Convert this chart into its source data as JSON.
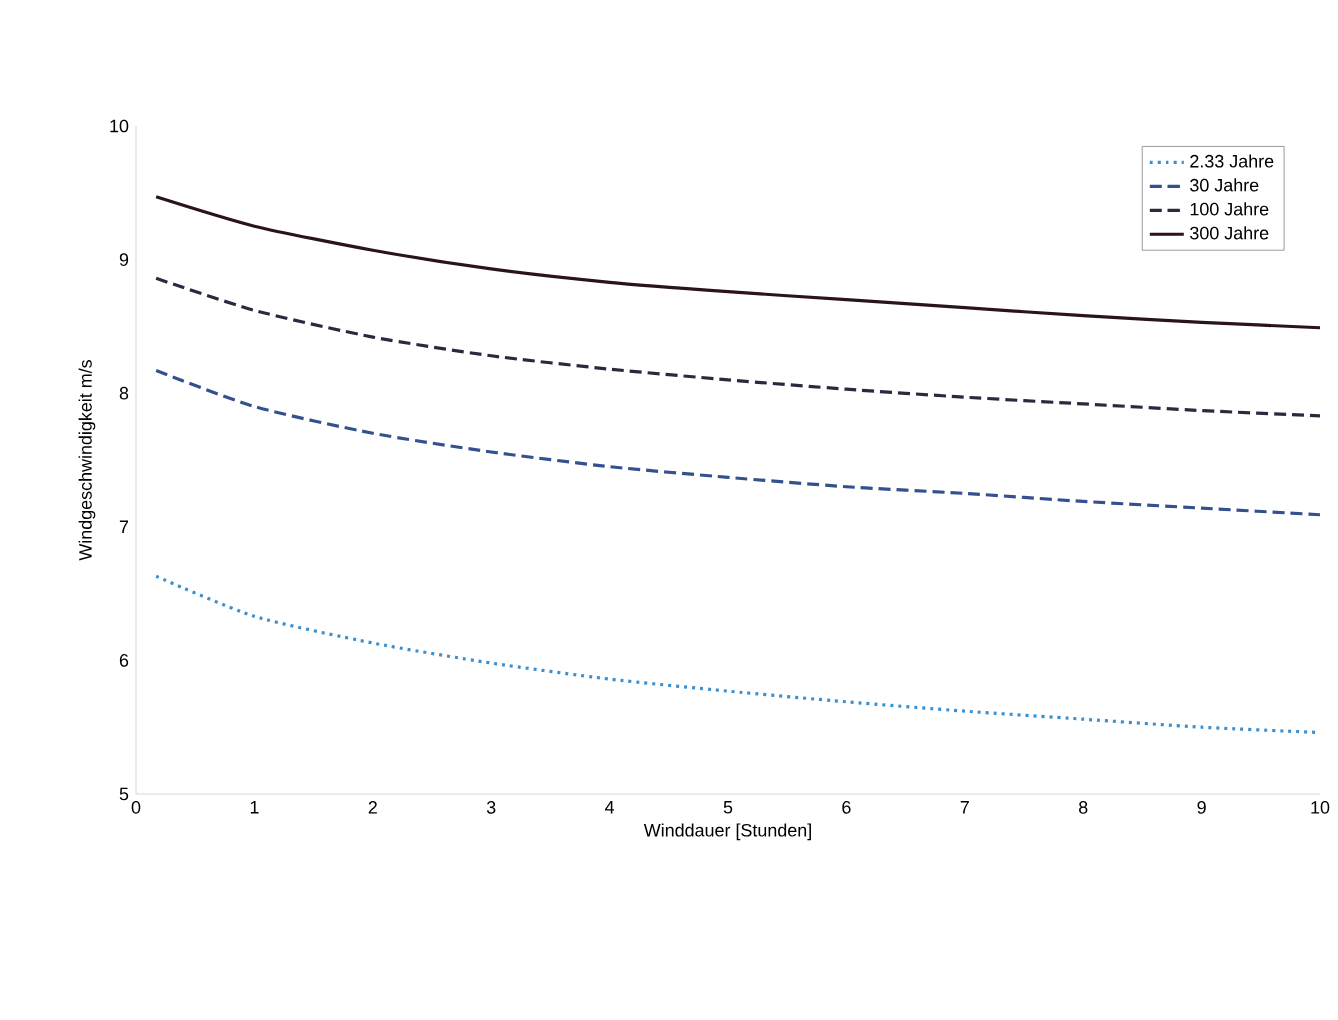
{
  "chart_data": {
    "type": "line",
    "xlabel": "Winddauer [Stunden]",
    "ylabel": "Windgeschwindigkeit m/s",
    "x": [
      0.17,
      1,
      2,
      3,
      4,
      5,
      6,
      7,
      8,
      9,
      10
    ],
    "series": [
      {
        "name": "2.33  Jahre",
        "color": "#3a8fcf",
        "line_style": "dotted",
        "values": [
          6.63,
          6.33,
          6.13,
          5.98,
          5.86,
          5.77,
          5.69,
          5.62,
          5.56,
          5.5,
          5.46
        ]
      },
      {
        "name": "30 Jahre",
        "color": "#34508f",
        "line_style": "dashed",
        "values": [
          8.17,
          7.9,
          7.7,
          7.56,
          7.45,
          7.37,
          7.3,
          7.25,
          7.19,
          7.14,
          7.09
        ]
      },
      {
        "name": "100 Jahre",
        "color": "#2a2a3f",
        "line_style": "dashed",
        "values": [
          8.86,
          8.62,
          8.42,
          8.28,
          8.18,
          8.1,
          8.03,
          7.97,
          7.92,
          7.87,
          7.83
        ]
      },
      {
        "name": "300 Jahre",
        "color": "#2a1418",
        "line_style": "solid",
        "values": [
          9.47,
          9.25,
          9.07,
          8.93,
          8.83,
          8.76,
          8.7,
          8.64,
          8.58,
          8.53,
          8.49
        ]
      }
    ],
    "xlim": [
      0,
      10
    ],
    "ylim": [
      5,
      10
    ],
    "xticks": [
      0,
      1,
      2,
      3,
      4,
      5,
      6,
      7,
      8,
      9,
      10
    ],
    "yticks": [
      5,
      6,
      7,
      8,
      9,
      10
    ],
    "legend": "top right",
    "grid": false
  }
}
